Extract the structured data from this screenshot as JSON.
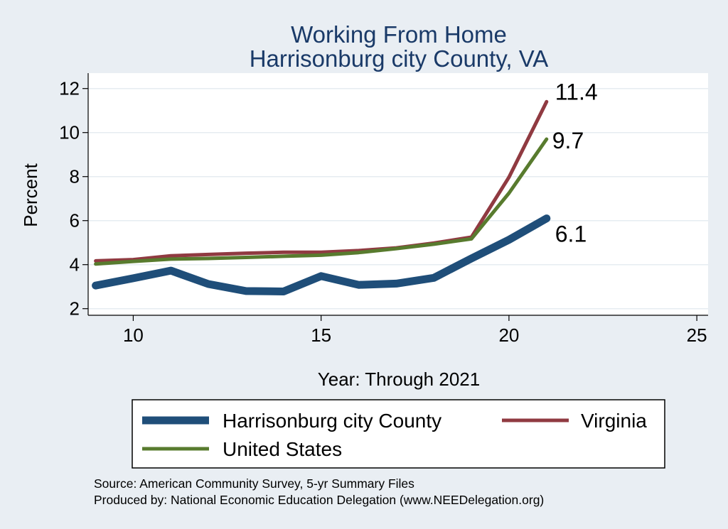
{
  "chart_data": {
    "type": "line",
    "title": "Working From Home",
    "subtitle": "Harrisonburg city County, VA",
    "xlabel": "Year: Through 2021",
    "ylabel": "Percent",
    "xlim": [
      8.8,
      25.3
    ],
    "ylim": [
      1.7,
      12.7
    ],
    "xticks": [
      10,
      15,
      20,
      25
    ],
    "yticks": [
      2,
      4,
      6,
      8,
      10,
      12
    ],
    "grid": "horizontal",
    "legend_position": "bottom",
    "series": [
      {
        "name": "Harrisonburg city County",
        "color": "#1f4e79",
        "x": [
          9,
          10,
          11,
          12,
          13,
          14,
          15,
          16,
          17,
          18,
          19,
          20,
          21
        ],
        "y": [
          3.05,
          3.38,
          3.73,
          3.12,
          2.8,
          2.78,
          3.48,
          3.08,
          3.14,
          3.4,
          4.28,
          5.13,
          6.1
        ],
        "end_label": "6.1"
      },
      {
        "name": "Virginia",
        "color": "#903a41",
        "x": [
          9,
          10,
          11,
          12,
          13,
          14,
          15,
          16,
          17,
          18,
          19,
          20,
          21
        ],
        "y": [
          4.17,
          4.23,
          4.4,
          4.46,
          4.52,
          4.56,
          4.56,
          4.64,
          4.76,
          4.98,
          5.25,
          7.97,
          11.4
        ],
        "end_label": "11.4"
      },
      {
        "name": "United States",
        "color": "#587b2e",
        "x": [
          9,
          10,
          11,
          12,
          13,
          14,
          15,
          16,
          17,
          18,
          19,
          20,
          21
        ],
        "y": [
          4.03,
          4.15,
          4.25,
          4.28,
          4.33,
          4.38,
          4.43,
          4.55,
          4.73,
          4.93,
          5.17,
          7.25,
          9.7
        ],
        "end_label": "9.7"
      }
    ],
    "notes": [
      "Source: American Community Survey, 5-yr Summary Files",
      "Produced by: National Economic Education Delegation (www.NEEDelegation.org)"
    ]
  }
}
